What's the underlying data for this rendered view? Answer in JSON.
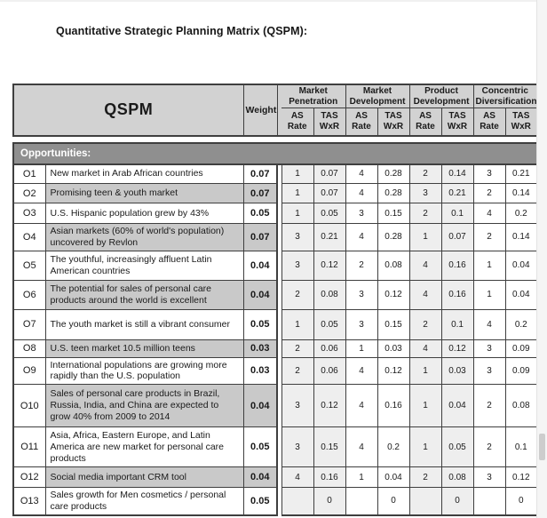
{
  "page": {
    "title": "Quantitative Strategic Planning Matrix (QSPM):"
  },
  "table": {
    "corner_label": "QSPM",
    "weight_label": "Weight",
    "as_label": "AS Rate",
    "tas_label": "TAS WxR",
    "strategies": [
      {
        "name": "Market Penetration"
      },
      {
        "name": "Market Development"
      },
      {
        "name": "Product Development"
      },
      {
        "name": "Concentric Diversification"
      }
    ],
    "section_label": "Opportunities:",
    "rows": [
      {
        "id": "O1",
        "description": "New market in Arab African countries",
        "weight": "0.07",
        "values": [
          "1",
          "0.07",
          "4",
          "0.28",
          "2",
          "0.14",
          "3",
          "0.21"
        ]
      },
      {
        "id": "O2",
        "description": "Promising teen & youth market",
        "weight": "0.07",
        "values": [
          "1",
          "0.07",
          "4",
          "0.28",
          "3",
          "0.21",
          "2",
          "0.14"
        ]
      },
      {
        "id": "O3",
        "description": "U.S. Hispanic population grew by 43%",
        "weight": "0.05",
        "values": [
          "1",
          "0.05",
          "3",
          "0.15",
          "2",
          "0.1",
          "4",
          "0.2"
        ]
      },
      {
        "id": "O4",
        "description": "Asian markets (60% of world's population) uncovered by Revlon",
        "weight": "0.07",
        "values": [
          "3",
          "0.21",
          "4",
          "0.28",
          "1",
          "0.07",
          "2",
          "0.14"
        ]
      },
      {
        "id": "O5",
        "description": "The youthful, increasingly affluent Latin American countries",
        "weight": "0.04",
        "values": [
          "3",
          "0.12",
          "2",
          "0.08",
          "4",
          "0.16",
          "1",
          "0.04"
        ]
      },
      {
        "id": "O6",
        "description": "The potential for sales of personal care products around the world is excellent",
        "weight": "0.04",
        "values": [
          "2",
          "0.08",
          "3",
          "0.12",
          "4",
          "0.16",
          "1",
          "0.04"
        ]
      },
      {
        "id": "O7",
        "description": "The youth market is still a vibrant consumer",
        "weight": "0.05",
        "values": [
          "1",
          "0.05",
          "3",
          "0.15",
          "2",
          "0.1",
          "4",
          "0.2"
        ]
      },
      {
        "id": "O8",
        "description": "U.S. teen market 10.5 million teens",
        "weight": "0.03",
        "values": [
          "2",
          "0.06",
          "1",
          "0.03",
          "4",
          "0.12",
          "3",
          "0.09"
        ]
      },
      {
        "id": "O9",
        "description": "International populations are growing more rapidly than the U.S. population",
        "weight": "0.03",
        "values": [
          "2",
          "0.06",
          "4",
          "0.12",
          "1",
          "0.03",
          "3",
          "0.09"
        ]
      },
      {
        "id": "O10",
        "description": "Sales of personal care products in Brazil, Russia, India, and China are expected to grow 40% from 2009 to 2014",
        "weight": "0.04",
        "values": [
          "3",
          "0.12",
          "4",
          "0.16",
          "1",
          "0.04",
          "2",
          "0.08"
        ]
      },
      {
        "id": "O11",
        "description": "Asia, Africa, Eastern Europe, and Latin America are new market for personal care products",
        "weight": "0.05",
        "values": [
          "3",
          "0.15",
          "4",
          "0.2",
          "1",
          "0.05",
          "2",
          "0.1"
        ]
      },
      {
        "id": "O12",
        "description": "Social media important CRM tool",
        "weight": "0.04",
        "values": [
          "4",
          "0.16",
          "1",
          "0.04",
          "2",
          "0.08",
          "3",
          "0.12"
        ]
      },
      {
        "id": "O13",
        "description": "Sales growth for Men cosmetics / personal care products",
        "weight": "0.05",
        "values": [
          "",
          "0",
          "",
          "0",
          "",
          "0",
          "",
          "0"
        ]
      }
    ]
  },
  "colors": {
    "header_bg": "#d2d2d2",
    "section_bg": "#8f8f8f",
    "section_text": "#ffffff",
    "row_shade_bg": "#c9c9c9",
    "group_tint_bg": "#eeeeee",
    "border": "#3f3f3f"
  }
}
